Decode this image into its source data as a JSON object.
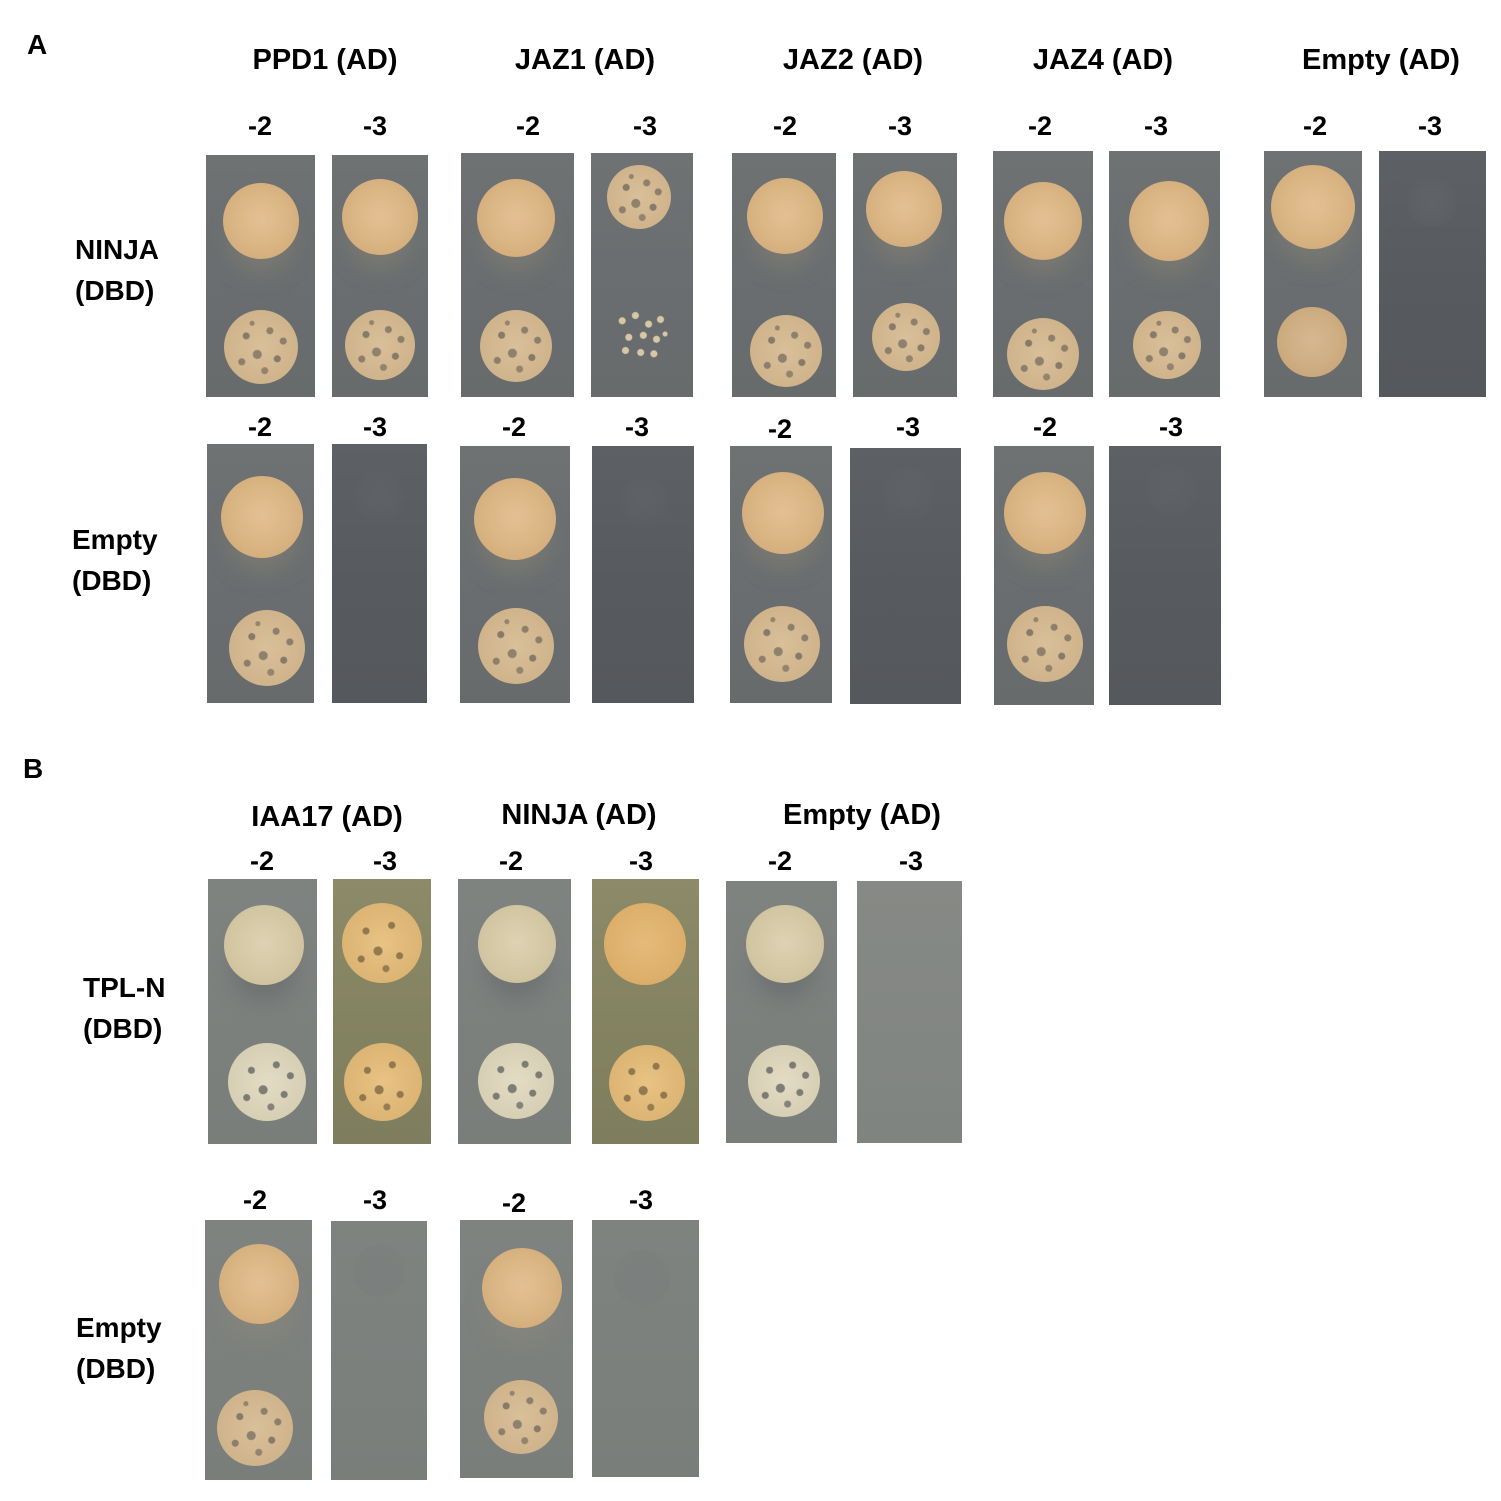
{
  "panel_a": {
    "letter": "A",
    "columns": [
      "PPD1 (AD)",
      "JAZ1 (AD)",
      "JAZ2 (AD)",
      "JAZ4 (AD)",
      "Empty (AD)"
    ],
    "dilution_labels": [
      "-2",
      "-3"
    ],
    "rows": [
      "NINJA\n(DBD)",
      "Empty\n(DBD)"
    ]
  },
  "panel_b": {
    "letter": "B",
    "columns": [
      "IAA17 (AD)",
      "NINJA (AD)",
      "Empty (AD)"
    ],
    "dilution_labels": [
      "-2",
      "-3"
    ],
    "rows": [
      "TPL-N\n(DBD)",
      "Empty\n(DBD)"
    ]
  }
}
